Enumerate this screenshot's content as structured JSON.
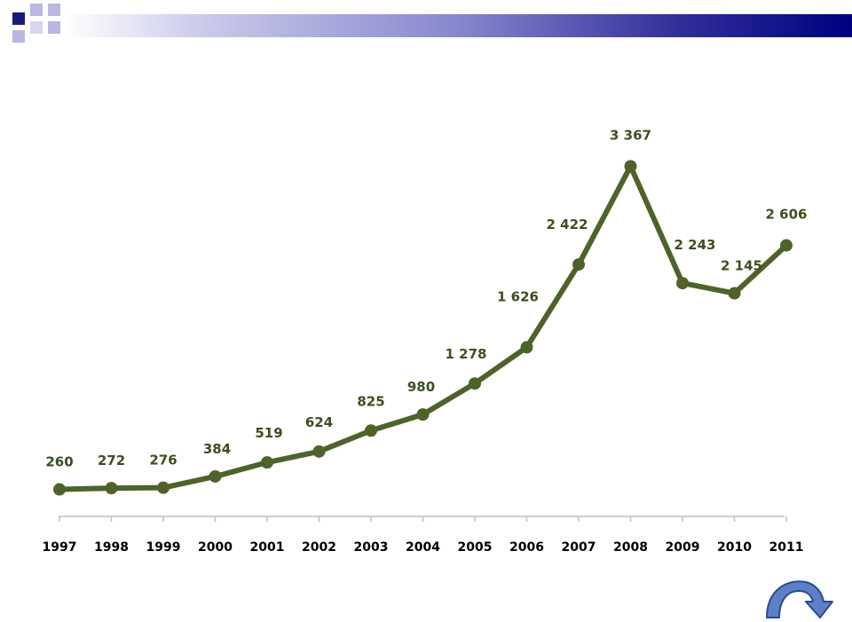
{
  "colors": {
    "line": "#4f6228",
    "marker": "#4f6228",
    "label": "#3d4f1f",
    "axis": "#bfbfbf",
    "banner_dark": "#000080",
    "square_dark": "#1a1a7a",
    "square_light": "#b8b8e0",
    "arrow_fill": "#5b80c8",
    "arrow_stroke": "#2a4a8c"
  },
  "nav": {
    "next_icon": "curved-arrow-right-icon"
  },
  "chart_data": {
    "type": "line",
    "title": "",
    "xlabel": "",
    "ylabel": "",
    "grid": false,
    "legend": "none",
    "ylim": [
      0,
      3600
    ],
    "categories": [
      "1997",
      "1998",
      "1999",
      "2000",
      "2001",
      "2002",
      "2003",
      "2004",
      "2005",
      "2006",
      "2007",
      "2008",
      "2009",
      "2010",
      "2011"
    ],
    "series": [
      {
        "values": [
          260,
          272,
          276,
          384,
          519,
          624,
          825,
          980,
          1278,
          1626,
          2422,
          3367,
          2243,
          2145,
          2606
        ],
        "labels": [
          "260",
          "272",
          "276",
          "384",
          "519",
          "624",
          "825",
          "980",
          "1 278",
          "1 626",
          "2 422",
          "3 367",
          "2 243",
          "2 145",
          "2 606"
        ]
      }
    ]
  }
}
